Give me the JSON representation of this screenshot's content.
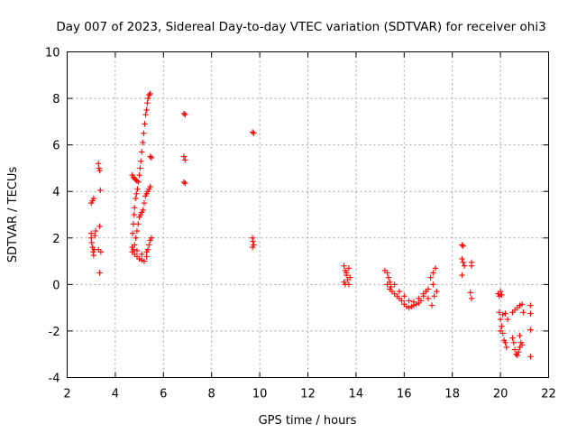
{
  "chart_data": {
    "type": "scatter",
    "title": "Day 007 of 2023, Sidereal Day-to-day VTEC variation (SDTVAR) for receiver ohi3",
    "xlabel": "GPS time / hours",
    "ylabel": "SDTVAR / TECUs",
    "xlim": [
      2,
      22
    ],
    "ylim": [
      -4,
      10
    ],
    "x_ticks": [
      2,
      4,
      6,
      8,
      10,
      12,
      14,
      16,
      18,
      20,
      22
    ],
    "y_ticks": [
      -4,
      -2,
      0,
      2,
      4,
      6,
      8,
      10
    ],
    "grid": true,
    "marker": "+",
    "series": [
      {
        "name": "SDTVAR",
        "color": "#ff0000",
        "points": [
          [
            3.0,
            3.5
          ],
          [
            3.05,
            3.6
          ],
          [
            3.1,
            3.7
          ],
          [
            3.0,
            2.2
          ],
          [
            3.0,
            2.0
          ],
          [
            3.02,
            1.8
          ],
          [
            3.05,
            1.6
          ],
          [
            3.08,
            1.4
          ],
          [
            3.1,
            1.25
          ],
          [
            3.12,
            1.5
          ],
          [
            3.15,
            2.1
          ],
          [
            3.18,
            2.3
          ],
          [
            3.3,
            5.2
          ],
          [
            3.32,
            5.0
          ],
          [
            3.35,
            4.9
          ],
          [
            3.38,
            4.05
          ],
          [
            3.35,
            2.5
          ],
          [
            3.3,
            1.5
          ],
          [
            3.4,
            1.4
          ],
          [
            3.35,
            0.5
          ],
          [
            4.7,
            4.7
          ],
          [
            4.75,
            4.6
          ],
          [
            4.8,
            4.55
          ],
          [
            4.85,
            4.5
          ],
          [
            4.9,
            4.45
          ],
          [
            4.72,
            2.2
          ],
          [
            4.75,
            2.6
          ],
          [
            4.78,
            3.0
          ],
          [
            4.8,
            3.3
          ],
          [
            4.84,
            3.7
          ],
          [
            4.88,
            3.9
          ],
          [
            4.92,
            4.1
          ],
          [
            4.96,
            4.4
          ],
          [
            5.0,
            4.7
          ],
          [
            5.03,
            5.0
          ],
          [
            5.06,
            5.3
          ],
          [
            5.1,
            5.7
          ],
          [
            5.14,
            6.1
          ],
          [
            5.18,
            6.5
          ],
          [
            5.22,
            6.9
          ],
          [
            5.26,
            7.3
          ],
          [
            5.3,
            7.5
          ],
          [
            5.33,
            7.8
          ],
          [
            5.36,
            8.0
          ],
          [
            5.4,
            8.15
          ],
          [
            5.45,
            8.2
          ],
          [
            4.75,
            1.5
          ],
          [
            4.8,
            1.7
          ],
          [
            4.85,
            2.0
          ],
          [
            4.9,
            2.3
          ],
          [
            4.95,
            2.6
          ],
          [
            5.0,
            2.9
          ],
          [
            5.05,
            3.0
          ],
          [
            5.1,
            3.1
          ],
          [
            5.15,
            3.2
          ],
          [
            5.2,
            3.5
          ],
          [
            5.25,
            3.8
          ],
          [
            5.3,
            3.9
          ],
          [
            5.35,
            4.0
          ],
          [
            5.4,
            4.1
          ],
          [
            5.45,
            4.2
          ],
          [
            4.7,
            1.4
          ],
          [
            4.8,
            1.3
          ],
          [
            4.9,
            1.2
          ],
          [
            5.0,
            1.1
          ],
          [
            5.1,
            1.05
          ],
          [
            5.2,
            1.0
          ],
          [
            5.3,
            1.2
          ],
          [
            5.35,
            1.5
          ],
          [
            5.4,
            1.7
          ],
          [
            5.45,
            1.9
          ],
          [
            5.5,
            2.0
          ],
          [
            4.7,
            1.6
          ],
          [
            4.9,
            1.45
          ],
          [
            5.1,
            1.3
          ],
          [
            5.3,
            1.4
          ],
          [
            5.45,
            5.5
          ],
          [
            5.5,
            5.45
          ],
          [
            6.85,
            7.35
          ],
          [
            6.9,
            7.3
          ],
          [
            6.85,
            5.5
          ],
          [
            6.9,
            5.35
          ],
          [
            6.85,
            4.4
          ],
          [
            6.9,
            4.35
          ],
          [
            9.7,
            6.55
          ],
          [
            9.75,
            6.5
          ],
          [
            9.7,
            2.0
          ],
          [
            9.72,
            1.85
          ],
          [
            9.75,
            1.7
          ],
          [
            9.7,
            1.6
          ],
          [
            13.5,
            0.8
          ],
          [
            13.55,
            0.6
          ],
          [
            13.6,
            0.4
          ],
          [
            13.65,
            0.2
          ],
          [
            13.55,
            0.0
          ],
          [
            13.6,
            0.5
          ],
          [
            13.7,
            0.7
          ],
          [
            13.75,
            0.3
          ],
          [
            13.5,
            0.1
          ],
          [
            13.7,
            0.0
          ],
          [
            15.2,
            0.6
          ],
          [
            15.3,
            0.5
          ],
          [
            15.35,
            0.3
          ],
          [
            15.4,
            0.1
          ],
          [
            15.45,
            -0.1
          ],
          [
            15.5,
            -0.3
          ],
          [
            15.6,
            -0.4
          ],
          [
            15.7,
            -0.5
          ],
          [
            15.8,
            -0.6
          ],
          [
            15.9,
            -0.7
          ],
          [
            16.0,
            -0.85
          ],
          [
            16.1,
            -0.95
          ],
          [
            16.2,
            -1.0
          ],
          [
            16.3,
            -0.95
          ],
          [
            16.4,
            -0.9
          ],
          [
            16.5,
            -0.85
          ],
          [
            16.6,
            -0.8
          ],
          [
            16.7,
            -0.7
          ],
          [
            16.8,
            -0.5
          ],
          [
            16.9,
            -0.3
          ],
          [
            17.0,
            -0.2
          ],
          [
            17.1,
            0.3
          ],
          [
            17.2,
            0.5
          ],
          [
            17.3,
            0.7
          ],
          [
            15.3,
            0.0
          ],
          [
            15.4,
            -0.2
          ],
          [
            15.6,
            0.0
          ],
          [
            15.8,
            -0.3
          ],
          [
            16.0,
            -0.5
          ],
          [
            16.2,
            -0.7
          ],
          [
            16.4,
            -0.75
          ],
          [
            16.6,
            -0.6
          ],
          [
            16.8,
            -0.4
          ],
          [
            17.0,
            -0.6
          ],
          [
            17.15,
            -0.9
          ],
          [
            17.25,
            -0.5
          ],
          [
            17.35,
            -0.3
          ],
          [
            17.2,
            0.0
          ],
          [
            18.4,
            1.7
          ],
          [
            18.45,
            1.65
          ],
          [
            18.4,
            1.1
          ],
          [
            18.45,
            0.95
          ],
          [
            18.5,
            0.8
          ],
          [
            18.4,
            0.4
          ],
          [
            18.8,
            0.95
          ],
          [
            18.8,
            0.8
          ],
          [
            18.75,
            -0.35
          ],
          [
            18.8,
            -0.6
          ],
          [
            19.9,
            -0.4
          ],
          [
            19.95,
            -0.5
          ],
          [
            20.0,
            -0.3
          ],
          [
            20.05,
            -0.45
          ],
          [
            19.95,
            -1.2
          ],
          [
            20.0,
            -1.5
          ],
          [
            20.05,
            -1.8
          ],
          [
            20.1,
            -2.1
          ],
          [
            20.15,
            -2.4
          ],
          [
            20.2,
            -2.5
          ],
          [
            20.0,
            -2.0
          ],
          [
            20.1,
            -1.3
          ],
          [
            20.2,
            -1.25
          ],
          [
            20.3,
            -1.5
          ],
          [
            20.25,
            -2.7
          ],
          [
            20.5,
            -2.3
          ],
          [
            20.55,
            -2.5
          ],
          [
            20.6,
            -2.8
          ],
          [
            20.65,
            -3.0
          ],
          [
            20.7,
            -3.05
          ],
          [
            20.75,
            -2.9
          ],
          [
            20.8,
            -2.7
          ],
          [
            20.5,
            -1.2
          ],
          [
            20.6,
            -1.1
          ],
          [
            20.7,
            -1.0
          ],
          [
            20.8,
            -0.9
          ],
          [
            20.9,
            -0.85
          ],
          [
            20.95,
            -1.2
          ],
          [
            20.9,
            -2.6
          ],
          [
            20.85,
            -2.5
          ],
          [
            20.8,
            -2.2
          ],
          [
            21.25,
            -0.9
          ],
          [
            21.25,
            -1.25
          ],
          [
            21.25,
            -1.95
          ],
          [
            21.25,
            -3.1
          ]
        ]
      }
    ]
  }
}
